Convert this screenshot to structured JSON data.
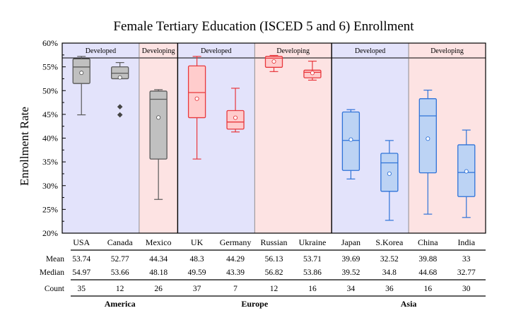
{
  "chart_data": {
    "type": "box",
    "title": "Female Tertiary Education (ISCED 5 and 6) Enrollment",
    "ylabel": "Enrollment Rate",
    "ylim": [
      20,
      60
    ],
    "yticks": [
      "20%",
      "25%",
      "30%",
      "35%",
      "40%",
      "45%",
      "50%",
      "55%",
      "60%"
    ],
    "ytick_values": [
      20,
      25,
      30,
      35,
      40,
      45,
      50,
      55,
      60
    ],
    "colors": {
      "developed_bg": "#e3e3fb",
      "developing_bg": "#fde3e3",
      "gray_box": "#c0c0c0",
      "gray_line": "#595959",
      "red_box": "#ffcccc",
      "red_line": "#e8383d",
      "blue_box": "#bcd3f4",
      "blue_line": "#2f73d8"
    },
    "bands": [
      {
        "label": "Developed",
        "from": 0,
        "to": 2,
        "kind": "developed"
      },
      {
        "label": "Developing",
        "from": 2,
        "to": 3,
        "kind": "developing"
      },
      {
        "label": "Developed",
        "from": 3,
        "to": 5,
        "kind": "developed"
      },
      {
        "label": "Developing",
        "from": 5,
        "to": 7,
        "kind": "developing"
      },
      {
        "label": "Developed",
        "from": 7,
        "to": 9,
        "kind": "developed"
      },
      {
        "label": "Developing",
        "from": 9,
        "to": 11,
        "kind": "developing"
      }
    ],
    "groups": [
      {
        "name": "America",
        "from": 0,
        "to": 3
      },
      {
        "name": "Europe",
        "from": 3,
        "to": 7
      },
      {
        "name": "Asia",
        "from": 7,
        "to": 11
      }
    ],
    "row_labels": {
      "mean": "Mean",
      "median": "Median",
      "count": "Count"
    },
    "series": [
      {
        "name": "USA",
        "color": "gray",
        "min": 44.9,
        "q1": 51.5,
        "median": 54.97,
        "q3": 56.7,
        "max": 57.2,
        "mean": 53.74,
        "outliers": [],
        "mean_label": "53.74",
        "median_label": "54.97",
        "count": "35"
      },
      {
        "name": "Canada",
        "color": "gray",
        "min": 52.5,
        "q1": 52.5,
        "median": 53.66,
        "q3": 55.0,
        "max": 55.9,
        "mean": 52.77,
        "outliers": [
          46.6,
          44.9
        ],
        "mean_label": "52.77",
        "median_label": "53.66",
        "count": "12"
      },
      {
        "name": "Mexico",
        "color": "gray",
        "min": 27.1,
        "q1": 35.6,
        "median": 48.18,
        "q3": 49.9,
        "max": 50.2,
        "mean": 44.34,
        "outliers": [],
        "mean_label": "44.34",
        "median_label": "48.18",
        "count": "26"
      },
      {
        "name": "UK",
        "color": "red",
        "min": 35.6,
        "q1": 44.3,
        "median": 49.59,
        "q3": 55.2,
        "max": 57.2,
        "mean": 48.3,
        "outliers": [],
        "mean_label": "48.3",
        "median_label": "49.59",
        "count": "37"
      },
      {
        "name": "Germany",
        "color": "red",
        "min": 41.3,
        "q1": 41.9,
        "median": 43.39,
        "q3": 45.8,
        "max": 50.5,
        "mean": 44.29,
        "outliers": [],
        "mean_label": "44.29",
        "median_label": "43.39",
        "count": "7"
      },
      {
        "name": "Russian",
        "color": "red",
        "min": 54.0,
        "q1": 54.9,
        "median": 56.82,
        "q3": 57.2,
        "max": 57.4,
        "mean": 56.13,
        "outliers": [],
        "mean_label": "56.13",
        "median_label": "56.82",
        "count": "12"
      },
      {
        "name": "Ukraine",
        "color": "red",
        "min": 52.2,
        "q1": 52.7,
        "median": 53.86,
        "q3": 54.3,
        "max": 56.2,
        "mean": 53.71,
        "outliers": [],
        "mean_label": "53.71",
        "median_label": "53.86",
        "count": "16"
      },
      {
        "name": "Japan",
        "color": "blue",
        "min": 31.4,
        "q1": 33.2,
        "median": 39.52,
        "q3": 45.5,
        "max": 46.0,
        "mean": 39.69,
        "outliers": [],
        "mean_label": "39.69",
        "median_label": "39.52",
        "count": "34"
      },
      {
        "name": "S.Korea",
        "color": "blue",
        "min": 22.7,
        "q1": 28.8,
        "median": 34.8,
        "q3": 36.8,
        "max": 39.5,
        "mean": 32.52,
        "outliers": [],
        "mean_label": "32.52",
        "median_label": "34.8",
        "count": "36"
      },
      {
        "name": "China",
        "color": "blue",
        "min": 24.0,
        "q1": 32.7,
        "median": 44.68,
        "q3": 48.3,
        "max": 50.1,
        "mean": 39.88,
        "outliers": [],
        "mean_label": "39.88",
        "median_label": "44.68",
        "count": "16"
      },
      {
        "name": "India",
        "color": "blue",
        "min": 23.3,
        "q1": 27.7,
        "median": 32.77,
        "q3": 38.6,
        "max": 41.7,
        "mean": 33.0,
        "outliers": [],
        "mean_label": "33",
        "median_label": "32.77",
        "count": "30"
      }
    ]
  }
}
